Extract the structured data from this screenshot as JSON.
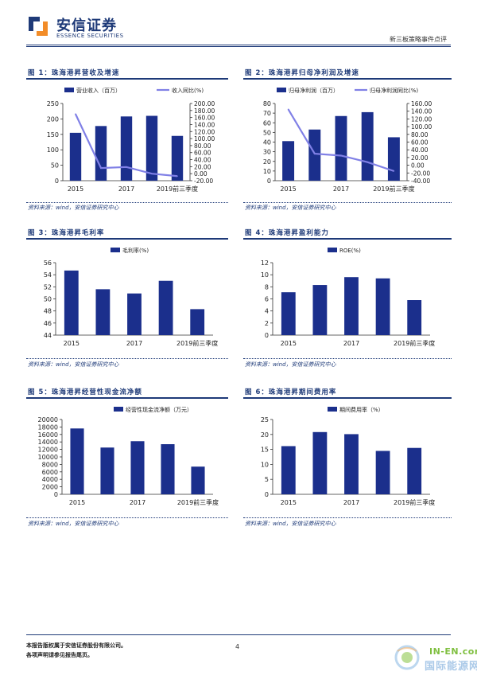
{
  "header": {
    "company_cn": "安信证券",
    "company_en": "ESSENCE SECURITIES",
    "report_type": "新三板策略事件点评"
  },
  "source_text": "资料来源：wind，安信证券研究中心",
  "footer": {
    "line1": "本报告版权属于安信证券股份有限公司。",
    "line2": "各项声明请参见报告尾页。",
    "page": "4"
  },
  "watermark": {
    "en": "IN-EN.com",
    "cn": "国际能源网"
  },
  "colors": {
    "bar": "#1b2f8c",
    "line": "#8080e6",
    "accent": "#1e3a78"
  },
  "chart_data": [
    {
      "id": "fig1",
      "title": "图 1：珠海港昇营收及增速",
      "type": "bar",
      "categories": [
        "2015",
        "2016",
        "2017",
        "2018",
        "2019前三季度"
      ],
      "tick_labels": [
        "2015",
        "",
        "2017",
        "",
        "2019前三季度"
      ],
      "series": [
        {
          "name": "营业收入（百万）",
          "values": [
            155,
            177,
            208,
            210,
            145
          ],
          "axis": "left"
        },
        {
          "name": "收入同比(%)",
          "type": "line",
          "values": [
            170,
            16,
            19,
            0,
            -7
          ],
          "axis": "right"
        }
      ],
      "ylim": [
        0,
        250
      ],
      "yticks": [
        0,
        50,
        100,
        150,
        200,
        250
      ],
      "y2lim": [
        -20,
        200
      ],
      "y2ticks": [
        "-20.00",
        "0.00",
        "20.00",
        "40.00",
        "60.00",
        "80.00",
        "100.00",
        "120.00",
        "140.00",
        "160.00",
        "180.00",
        "200.00"
      ],
      "legend": "top"
    },
    {
      "id": "fig2",
      "title": "图 2：珠海港昇归母净利润及增速",
      "type": "bar",
      "categories": [
        "2015",
        "2016",
        "2017",
        "2018",
        "2019前三季度"
      ],
      "tick_labels": [
        "2015",
        "",
        "2017",
        "",
        "2019前三季度"
      ],
      "series": [
        {
          "name": "归母净利润（百万）",
          "values": [
            41,
            53,
            67,
            71,
            45
          ],
          "axis": "left"
        },
        {
          "name": "归母净利润同比(%)",
          "type": "line",
          "values": [
            145,
            30,
            25,
            8,
            -15
          ],
          "axis": "right"
        }
      ],
      "ylim": [
        0,
        80
      ],
      "yticks": [
        0,
        10,
        20,
        30,
        40,
        50,
        60,
        70,
        80
      ],
      "y2lim": [
        -40,
        160
      ],
      "y2ticks": [
        "-40.00",
        "-20.00",
        "0.00",
        "20.00",
        "40.00",
        "60.00",
        "80.00",
        "100.00",
        "120.00",
        "140.00",
        "160.00"
      ],
      "legend": "top"
    },
    {
      "id": "fig3",
      "title": "图 3：珠海港昇毛利率",
      "type": "bar",
      "categories": [
        "2015",
        "2016",
        "2017",
        "2018",
        "2019前三季度"
      ],
      "tick_labels": [
        "2015",
        "",
        "2017",
        "",
        "2019前三季度"
      ],
      "series": [
        {
          "name": "毛利率(%)",
          "values": [
            54.7,
            51.6,
            50.9,
            53.0,
            48.3
          ]
        }
      ],
      "ylim": [
        44,
        56
      ],
      "yticks": [
        44,
        46,
        48,
        50,
        52,
        54,
        56
      ],
      "legend": "top"
    },
    {
      "id": "fig4",
      "title": "图 4：珠海港昇盈利能力",
      "type": "bar",
      "categories": [
        "2015",
        "2016",
        "2017",
        "2018",
        "2019前三季度"
      ],
      "tick_labels": [
        "2015",
        "",
        "2017",
        "",
        "2019前三季度"
      ],
      "series": [
        {
          "name": "ROE(%)",
          "values": [
            7.1,
            8.3,
            9.6,
            9.4,
            5.8
          ]
        }
      ],
      "ylim": [
        0,
        12
      ],
      "yticks": [
        0,
        2,
        4,
        6,
        8,
        10,
        12
      ],
      "legend": "top"
    },
    {
      "id": "fig5",
      "title": "图 5：珠海港昇经营性现金流净额",
      "type": "bar",
      "categories": [
        "2015",
        "2016",
        "2017",
        "2018",
        "2019前三季度"
      ],
      "tick_labels": [
        "2015",
        "",
        "2017",
        "",
        "2019前三季度"
      ],
      "series": [
        {
          "name": "经营性现金流净额（万元）",
          "values": [
            17600,
            12500,
            14200,
            13400,
            7400
          ]
        }
      ],
      "ylim": [
        0,
        20000
      ],
      "yticks": [
        0,
        2000,
        4000,
        6000,
        8000,
        10000,
        12000,
        14000,
        16000,
        18000,
        20000
      ],
      "legend": "top"
    },
    {
      "id": "fig6",
      "title": "图 6：珠海港昇期间费用率",
      "type": "bar",
      "categories": [
        "2015",
        "2016",
        "2017",
        "2018",
        "2019前三季度"
      ],
      "tick_labels": [
        "2015",
        "",
        "2017",
        "",
        "2019前三季度"
      ],
      "series": [
        {
          "name": "期间费用率（%）",
          "values": [
            16.1,
            20.8,
            20.1,
            14.5,
            15.5
          ]
        }
      ],
      "ylim": [
        0,
        25
      ],
      "yticks": [
        0,
        5,
        10,
        15,
        20,
        25
      ],
      "legend": "top"
    }
  ]
}
